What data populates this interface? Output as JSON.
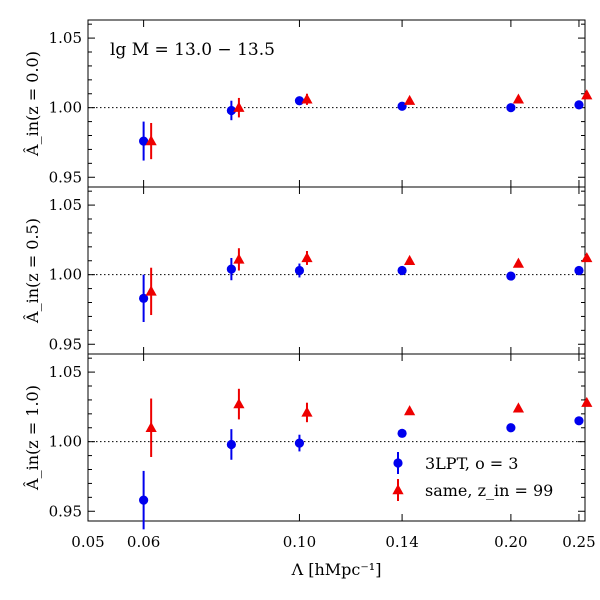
{
  "chart_data": {
    "type": "scatter",
    "x_scale": "log",
    "xlabel": "Λ [hMpc⁻¹]",
    "xlim": [
      0.05,
      0.255
    ],
    "x_ticks": [
      0.05,
      0.06,
      0.1,
      0.14,
      0.2,
      0.25
    ],
    "x_tick_labels": [
      "0.05",
      "0.06",
      "0.10",
      "0.14",
      "0.20",
      "0.25"
    ],
    "ylim": [
      0.943,
      1.063
    ],
    "y_ticks": [
      0.95,
      1.0,
      1.05
    ],
    "y_tick_labels": [
      "0.95",
      "1.00",
      "1.05"
    ],
    "reference_line": 1.0,
    "annotation": "lg M = 13.0 − 13.5",
    "legend": {
      "placement": "lower-right",
      "entries": [
        "3LPT, o = 3",
        "same, z_in = 99"
      ]
    },
    "panels": [
      {
        "ylabel": "Â_in(z = 0.0)",
        "series": [
          {
            "name": "3LPT, o = 3",
            "color": "#0000ee",
            "marker": "circle",
            "x": [
              0.06,
              0.08,
              0.1,
              0.14,
              0.2,
              0.25
            ],
            "y": [
              0.976,
              0.998,
              1.005,
              1.001,
              1.0,
              1.002
            ],
            "yerr": [
              0.014,
              0.007,
              0.003,
              0.002,
              0.0,
              0.0
            ]
          },
          {
            "name": "same, z_in = 99",
            "color": "#ee0000",
            "marker": "triangle",
            "x": [
              0.0615,
              0.082,
              0.1025,
              0.1435,
              0.205,
              0.2565
            ],
            "y": [
              0.976,
              1.0,
              1.006,
              1.005,
              1.006,
              1.009
            ],
            "yerr": [
              0.013,
              0.007,
              0.004,
              0.0,
              0.0,
              0.0
            ]
          }
        ]
      },
      {
        "ylabel": "Â_in(z = 0.5)",
        "series": [
          {
            "name": "3LPT, o = 3",
            "color": "#0000ee",
            "marker": "circle",
            "x": [
              0.06,
              0.08,
              0.1,
              0.14,
              0.2,
              0.25
            ],
            "y": [
              0.983,
              1.004,
              1.003,
              1.003,
              0.999,
              1.003
            ],
            "yerr": [
              0.017,
              0.008,
              0.005,
              0.0,
              0.0,
              0.0
            ]
          },
          {
            "name": "same, z_in = 99",
            "color": "#ee0000",
            "marker": "triangle",
            "x": [
              0.0615,
              0.082,
              0.1025,
              0.1435,
              0.205,
              0.2565
            ],
            "y": [
              0.988,
              1.011,
              1.012,
              1.01,
              1.008,
              1.012
            ],
            "yerr": [
              0.017,
              0.008,
              0.005,
              0.0,
              0.0,
              0.0
            ]
          }
        ]
      },
      {
        "ylabel": "Â_in(z = 1.0)",
        "series": [
          {
            "name": "3LPT, o = 3",
            "color": "#0000ee",
            "marker": "circle",
            "x": [
              0.06,
              0.08,
              0.1,
              0.14,
              0.2,
              0.25
            ],
            "y": [
              0.958,
              0.998,
              0.999,
              1.006,
              1.01,
              1.015
            ],
            "yerr": [
              0.021,
              0.011,
              0.006,
              0.0,
              0.0,
              0.0
            ]
          },
          {
            "name": "same, z_in = 99",
            "color": "#ee0000",
            "marker": "triangle",
            "x": [
              0.0615,
              0.082,
              0.1025,
              0.1435,
              0.205,
              0.2565
            ],
            "y": [
              1.01,
              1.027,
              1.021,
              1.022,
              1.024,
              1.028
            ],
            "yerr": [
              0.021,
              0.011,
              0.007,
              0.0,
              0.0,
              0.0
            ]
          }
        ]
      }
    ]
  }
}
